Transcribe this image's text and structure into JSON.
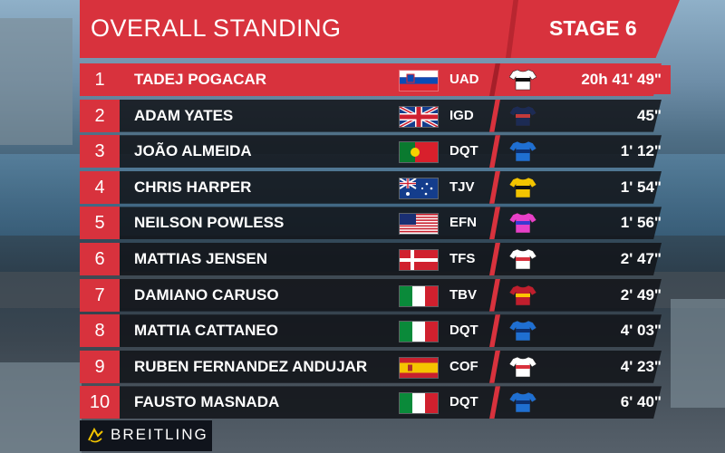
{
  "header": {
    "title": "OVERALL STANDING",
    "stage": "STAGE 6"
  },
  "colors": {
    "accent": "#d8323d",
    "bar": "#121418",
    "sponsor_bg": "#10141c"
  },
  "rows": [
    {
      "pos": "1",
      "name": "TADEJ POGACAR",
      "team": "UAD",
      "time": "20h 41' 49\"",
      "flag": "slovenia-flag",
      "jersey": [
        "#ffffff",
        "#111111"
      ]
    },
    {
      "pos": "2",
      "name": "ADAM YATES",
      "team": "IGD",
      "time": "45\"",
      "flag": "uk-flag",
      "jersey": [
        "#1c2b54",
        "#c33a3a"
      ]
    },
    {
      "pos": "3",
      "name": "JOÃO ALMEIDA",
      "team": "DQT",
      "time": "1' 12\"",
      "flag": "portugal-flag",
      "jersey": [
        "#1f6fd1",
        "#0d2f6d"
      ]
    },
    {
      "pos": "4",
      "name": "CHRIS HARPER",
      "team": "TJV",
      "time": "1' 54\"",
      "flag": "australia-flag",
      "jersey": [
        "#f2c400",
        "#111111"
      ]
    },
    {
      "pos": "5",
      "name": "NEILSON POWLESS",
      "team": "EFN",
      "time": "1' 56\"",
      "flag": "usa-flag",
      "jersey": [
        "#e840c8",
        "#3b3ad0"
      ]
    },
    {
      "pos": "6",
      "name": "MATTIAS JENSEN",
      "team": "TFS",
      "time": "2' 47\"",
      "flag": "denmark-flag",
      "jersey": [
        "#ffffff",
        "#d8323d"
      ]
    },
    {
      "pos": "7",
      "name": "DAMIANO CARUSO",
      "team": "TBV",
      "time": "2' 49\"",
      "flag": "italy-flag",
      "jersey": [
        "#c01e2d",
        "#ffc400"
      ]
    },
    {
      "pos": "8",
      "name": "MATTIA CATTANEO",
      "team": "DQT",
      "time": "4' 03\"",
      "flag": "italy-flag",
      "jersey": [
        "#1f6fd1",
        "#0d2f6d"
      ]
    },
    {
      "pos": "9",
      "name": "RUBEN FERNANDEZ ANDUJAR",
      "team": "COF",
      "time": "4' 23\"",
      "flag": "spain-flag",
      "jersey": [
        "#ffffff",
        "#d8323d"
      ]
    },
    {
      "pos": "10",
      "name": "FAUSTO MASNADA",
      "team": "DQT",
      "time": "6' 40\"",
      "flag": "italy-flag",
      "jersey": [
        "#1f6fd1",
        "#0d2f6d"
      ]
    }
  ],
  "sponsor": {
    "text": "BREITLING",
    "logo": "breitling-logo-icon"
  }
}
